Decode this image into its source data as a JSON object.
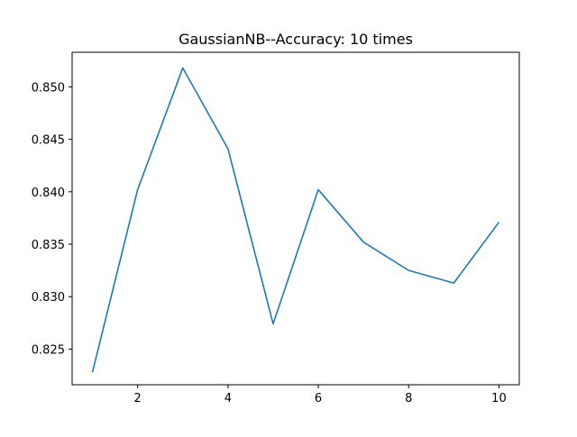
{
  "chart_data": {
    "type": "line",
    "title": "GaussianNB--Accuracy: 10 times",
    "xlabel": "",
    "ylabel": "",
    "x": [
      1,
      2,
      3,
      4,
      5,
      6,
      7,
      8,
      9,
      10
    ],
    "series": [
      {
        "values": [
          0.8228,
          0.8402,
          0.8518,
          0.8441,
          0.8274,
          0.8402,
          0.8352,
          0.8325,
          0.8313,
          0.8371
        ],
        "color": "#1f77b4"
      }
    ],
    "xlim": [
      0.55,
      10.45
    ],
    "ylim": [
      0.8216,
      0.8533
    ],
    "xticks": [
      2,
      4,
      6,
      8,
      10
    ],
    "xtick_labels": [
      "2",
      "4",
      "6",
      "8",
      "10"
    ],
    "yticks": [
      0.825,
      0.83,
      0.835,
      0.84,
      0.845,
      0.85
    ],
    "ytick_labels": [
      "0.825",
      "0.830",
      "0.835",
      "0.840",
      "0.845",
      "0.850"
    ],
    "grid": false,
    "legend": "none"
  }
}
